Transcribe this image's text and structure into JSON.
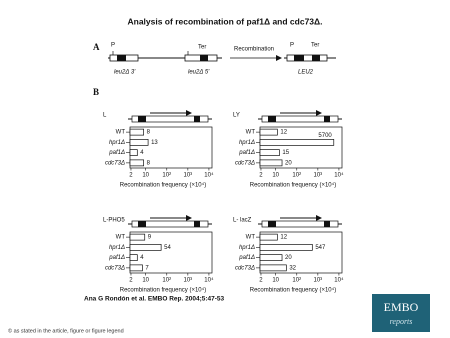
{
  "title": "Analysis of recombination of paf1Δ and cdc73Δ.",
  "panel_a": {
    "label": "A",
    "left_promoter": "P",
    "left_terminator": "Ter",
    "left_3": "leu2Δ 3'",
    "left_5": "leu2Δ 5'",
    "arrow": "Recombination",
    "right_promoter": "P",
    "right_terminator": "Ter",
    "right_gene": "LEU2"
  },
  "panel_b": {
    "label": "B"
  },
  "chart_data": [
    {
      "type": "bar",
      "title": "L",
      "categories": [
        "WT",
        "hpr1Δ",
        "paf1Δ",
        "cdc73Δ"
      ],
      "values": [
        8,
        13,
        4,
        8
      ],
      "color": "#ffffff",
      "log_x": true,
      "xlim": [
        1.8,
        14000
      ],
      "xticks": [
        2,
        10,
        {
          "value": 100,
          "label": "10²"
        },
        {
          "value": 1000,
          "label": "10³"
        },
        {
          "value": 10000,
          "label": "10⁴"
        }
      ],
      "xlabel": "Recombination frequency (×10⁴)"
    },
    {
      "type": "bar",
      "title": "LY",
      "categories": [
        "WT",
        "hpr1Δ",
        "paf1Δ",
        "cdc73Δ"
      ],
      "values": [
        12,
        5700,
        15,
        20
      ],
      "color": "#ffffff",
      "log_x": true,
      "xlim": [
        1.8,
        14000
      ],
      "xticks": [
        2,
        10,
        {
          "value": 100,
          "label": "10²"
        },
        {
          "value": 1000,
          "label": "10³"
        },
        {
          "value": 10000,
          "label": "10⁴"
        }
      ],
      "xlabel": "Recombination frequency (×10⁴)"
    },
    {
      "type": "bar",
      "title": "L-PHO5",
      "categories": [
        "WT",
        "hpr1Δ",
        "paf1Δ",
        "cdc73Δ"
      ],
      "values": [
        9,
        54,
        4,
        7
      ],
      "color": "#ffffff",
      "log_x": true,
      "xlim": [
        1.8,
        14000
      ],
      "xticks": [
        2,
        10,
        {
          "value": 100,
          "label": "10²"
        },
        {
          "value": 1000,
          "label": "10³"
        },
        {
          "value": 10000,
          "label": "10⁴"
        }
      ],
      "xlabel": "Recombination frequency (×10⁴)"
    },
    {
      "type": "bar",
      "title": "L- lacZ",
      "categories": [
        "WT",
        "hpr1Δ",
        "paf1Δ",
        "cdc73Δ"
      ],
      "values": [
        12,
        547,
        20,
        32
      ],
      "color": "#ffffff",
      "log_x": true,
      "xlim": [
        1.8,
        14000
      ],
      "xticks": [
        2,
        10,
        {
          "value": 100,
          "label": "10²"
        },
        {
          "value": 1000,
          "label": "10³"
        },
        {
          "value": 10000,
          "label": "10⁴"
        }
      ],
      "xlabel": "Recombination frequency (×10⁴)"
    }
  ],
  "citation": "Ana G Rondón et al. EMBO Rep. 2004;5:47-53",
  "footer": "© as stated in the article, figure or figure legend",
  "logo": {
    "name": "EMBO",
    "sub": "reports"
  }
}
